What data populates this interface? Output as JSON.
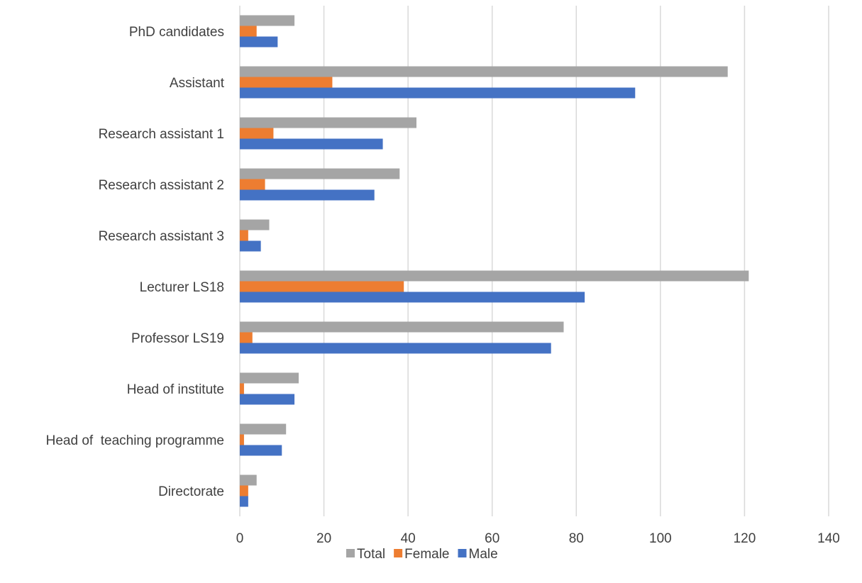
{
  "chart_data": {
    "type": "bar",
    "orientation": "horizontal",
    "categories": [
      "PhD candidates",
      "Assistant",
      "Research assistant 1",
      "Research assistant 2",
      "Research assistant 3",
      "Lecturer LS18",
      "Professor LS19",
      "Head of institute",
      "Head of  teaching programme",
      "Directorate"
    ],
    "series": [
      {
        "name": "Total",
        "color": "#a5a5a5",
        "values": [
          13,
          116,
          42,
          38,
          7,
          121,
          77,
          14,
          11,
          4
        ]
      },
      {
        "name": "Female",
        "color": "#ed7d31",
        "values": [
          4,
          22,
          8,
          6,
          2,
          39,
          3,
          1,
          1,
          2
        ]
      },
      {
        "name": "Male",
        "color": "#4472c4",
        "values": [
          9,
          94,
          34,
          32,
          5,
          82,
          74,
          13,
          10,
          2
        ]
      }
    ],
    "xlim": [
      0,
      140
    ],
    "xticks": [
      0,
      20,
      40,
      60,
      80,
      100,
      120,
      140
    ],
    "grid": true,
    "legend_position": "bottom"
  }
}
